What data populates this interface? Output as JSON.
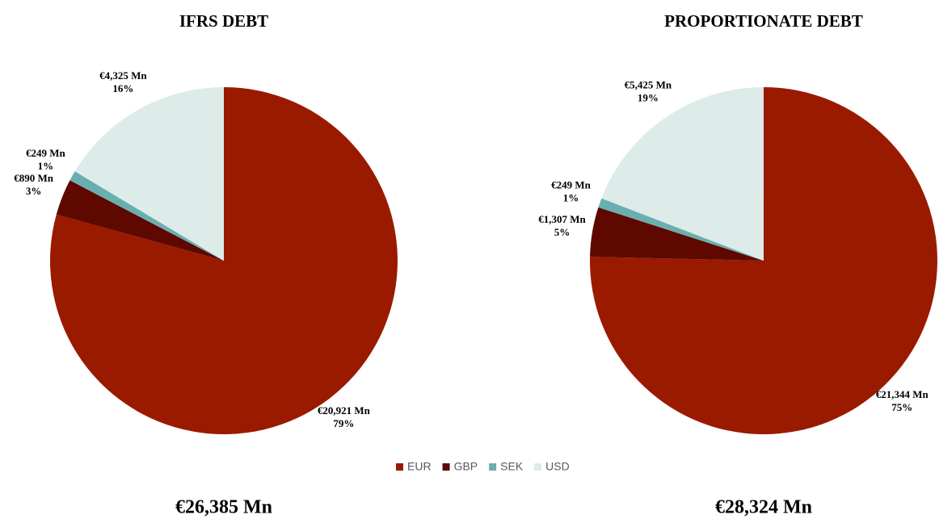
{
  "chart_data": [
    {
      "type": "pie",
      "title": "IFRS DEBT",
      "categories": [
        "EUR",
        "GBP",
        "SEK",
        "USD"
      ],
      "values": [
        20921,
        890,
        249,
        4325
      ],
      "value_labels": [
        "€20,921 Mn",
        "€890 Mn",
        "€249 Mn",
        "€4,325 Mn"
      ],
      "percents": [
        79,
        3,
        1,
        16
      ],
      "percent_labels": [
        "79%",
        "3%",
        "1%",
        "16%"
      ],
      "colors": [
        "#9a1a00",
        "#5e0800",
        "#6aafb0",
        "#ddece8"
      ],
      "total": 26385,
      "total_label": "€26,385 Mn"
    },
    {
      "type": "pie",
      "title": "PROPORTIONATE DEBT",
      "categories": [
        "EUR",
        "GBP",
        "SEK",
        "USD"
      ],
      "values": [
        21344,
        1307,
        249,
        5425
      ],
      "value_labels": [
        "€21,344 Mn",
        "€1,307 Mn",
        "€249 Mn",
        "€5,425 Mn"
      ],
      "percents": [
        75,
        5,
        1,
        19
      ],
      "percent_labels": [
        "75%",
        "5%",
        "1%",
        "19%"
      ],
      "colors": [
        "#9a1a00",
        "#5e0800",
        "#6aafb0",
        "#ddece8"
      ],
      "total": 28324,
      "total_label": "€28,324 Mn"
    }
  ]
}
